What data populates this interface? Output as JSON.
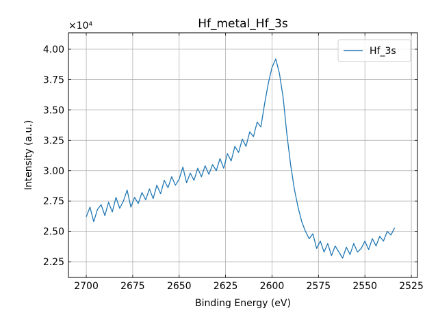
{
  "chart_data": {
    "type": "line",
    "title": "Hf_metal_Hf_3s",
    "x_label": "Binding Energy (eV)",
    "y_label": "Intensity (a.u.)",
    "y_offset_label": "×10⁴",
    "xlim": [
      2709.6,
      2521.7
    ],
    "ylim": [
      2.121,
      4.135
    ],
    "xticks": [
      2700,
      2675,
      2650,
      2625,
      2600,
      2575,
      2550,
      2525
    ],
    "yticks": [
      2.25,
      {
        "value": 2.5,
        "label": "2.50"
      },
      2.75,
      {
        "value": 3.0,
        "label": "3.00"
      },
      3.25,
      {
        "value": 3.5,
        "label": "3.50"
      },
      3.75,
      {
        "value": 4.0,
        "label": "4.00"
      }
    ],
    "grid": true,
    "legend": "upper right",
    "x": [
      2700,
      2698,
      2696,
      2694,
      2692,
      2690,
      2688,
      2686,
      2684,
      2682,
      2680,
      2678,
      2676,
      2674,
      2672,
      2670,
      2668,
      2666,
      2664,
      2662,
      2660,
      2658,
      2656,
      2654,
      2652,
      2650,
      2648,
      2646,
      2644,
      2642,
      2640,
      2638,
      2636,
      2634,
      2632,
      2630,
      2628,
      2626,
      2624,
      2622,
      2620,
      2618,
      2616,
      2614,
      2612,
      2610,
      2608,
      2606,
      2604,
      2602,
      2600,
      2598,
      2596,
      2594,
      2592,
      2590,
      2588,
      2586,
      2584,
      2582,
      2580,
      2578,
      2576,
      2574,
      2572,
      2570,
      2568,
      2566,
      2564,
      2562,
      2560,
      2558,
      2556,
      2554,
      2552,
      2550,
      2548,
      2546,
      2544,
      2542,
      2540,
      2538,
      2536,
      2534
    ],
    "series": [
      {
        "name": "Hf_3s",
        "color": "#1f77b4",
        "values": [
          2.62,
          2.7,
          2.58,
          2.68,
          2.72,
          2.63,
          2.74,
          2.66,
          2.78,
          2.69,
          2.75,
          2.84,
          2.7,
          2.78,
          2.73,
          2.82,
          2.76,
          2.85,
          2.77,
          2.88,
          2.81,
          2.92,
          2.86,
          2.95,
          2.88,
          2.93,
          3.03,
          2.9,
          2.98,
          2.92,
          3.02,
          2.95,
          3.04,
          2.97,
          3.05,
          3.0,
          3.1,
          3.02,
          3.14,
          3.08,
          3.2,
          3.15,
          3.26,
          3.2,
          3.32,
          3.28,
          3.4,
          3.36,
          3.55,
          3.72,
          3.85,
          3.92,
          3.8,
          3.6,
          3.3,
          3.05,
          2.85,
          2.7,
          2.58,
          2.5,
          2.44,
          2.48,
          2.36,
          2.42,
          2.33,
          2.4,
          2.3,
          2.38,
          2.33,
          2.28,
          2.37,
          2.31,
          2.4,
          2.33,
          2.36,
          2.42,
          2.35,
          2.44,
          2.38,
          2.46,
          2.42,
          2.5,
          2.47,
          2.53
        ]
      }
    ]
  }
}
